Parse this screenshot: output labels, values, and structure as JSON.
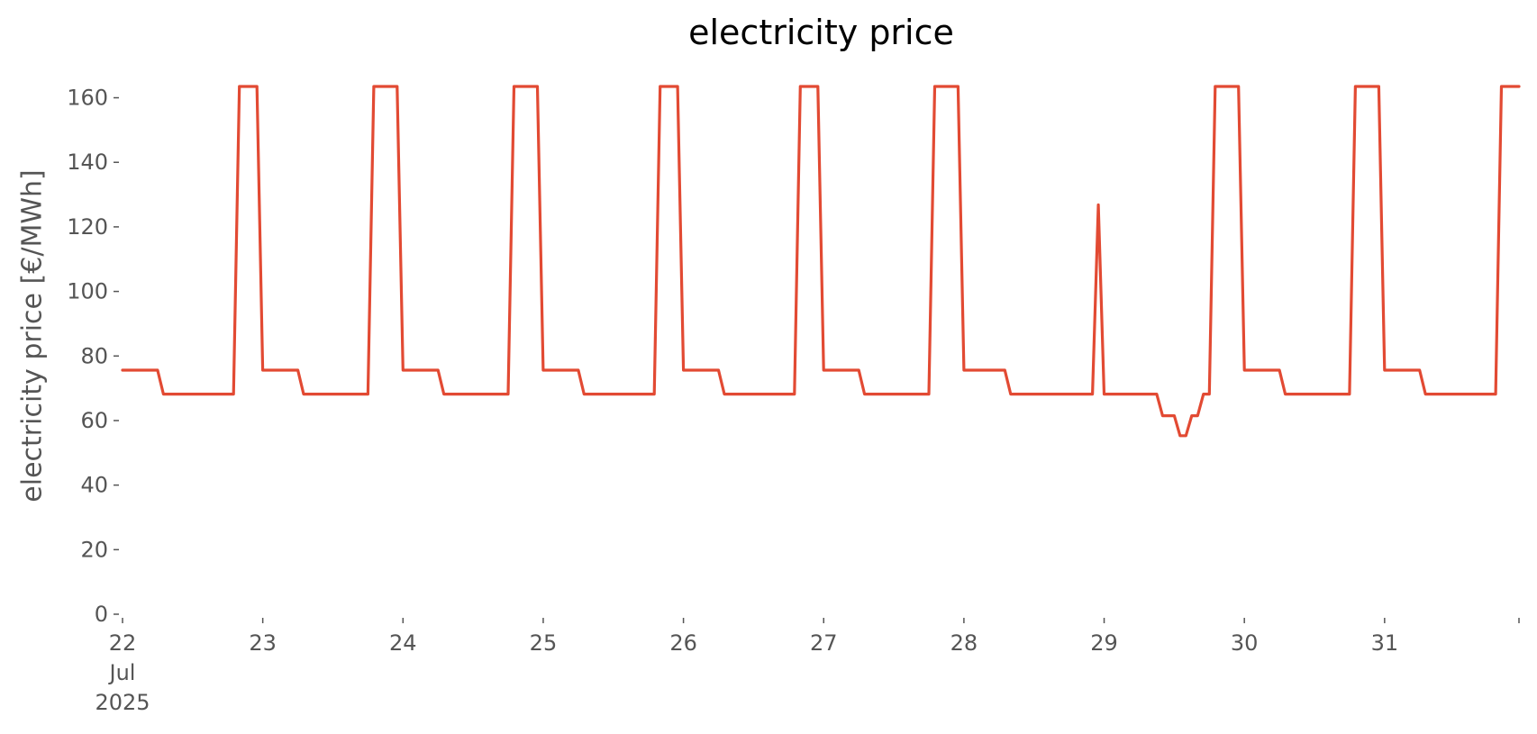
{
  "chart_data": {
    "type": "line",
    "title": "electricity price",
    "xlabel": "",
    "ylabel": "electricity price [€/MWh]",
    "ylim": [
      0,
      163.5
    ],
    "yticks": [
      0,
      20,
      40,
      60,
      80,
      100,
      120,
      140,
      160
    ],
    "xlim": [
      "2025-07-22 00:00",
      "2025-07-31 23:00"
    ],
    "xticks": [
      {
        "value": "2025-07-22",
        "lines": [
          "22",
          "Jul",
          "2025"
        ]
      },
      {
        "value": "2025-07-23",
        "lines": [
          "23"
        ]
      },
      {
        "value": "2025-07-24",
        "lines": [
          "24"
        ]
      },
      {
        "value": "2025-07-25",
        "lines": [
          "25"
        ]
      },
      {
        "value": "2025-07-26",
        "lines": [
          "26"
        ]
      },
      {
        "value": "2025-07-27",
        "lines": [
          "27"
        ]
      },
      {
        "value": "2025-07-28",
        "lines": [
          "28"
        ]
      },
      {
        "value": "2025-07-29",
        "lines": [
          "29"
        ]
      },
      {
        "value": "2025-07-30",
        "lines": [
          "30"
        ]
      },
      {
        "value": "2025-07-31",
        "lines": [
          "31"
        ]
      }
    ],
    "grid": false,
    "color": "#E24A33",
    "x": [
      "2025-07-22 00:00",
      "2025-07-22 06:00",
      "2025-07-22 07:00",
      "2025-07-22 19:00",
      "2025-07-22 20:00",
      "2025-07-22 23:00",
      "2025-07-23 00:00",
      "2025-07-23 06:00",
      "2025-07-23 07:00",
      "2025-07-23 18:00",
      "2025-07-23 19:00",
      "2025-07-23 23:00",
      "2025-07-24 00:00",
      "2025-07-24 06:00",
      "2025-07-24 07:00",
      "2025-07-24 18:00",
      "2025-07-24 19:00",
      "2025-07-24 23:00",
      "2025-07-25 00:00",
      "2025-07-25 06:00",
      "2025-07-25 07:00",
      "2025-07-25 19:00",
      "2025-07-25 20:00",
      "2025-07-25 23:00",
      "2025-07-26 00:00",
      "2025-07-26 06:00",
      "2025-07-26 07:00",
      "2025-07-26 19:00",
      "2025-07-26 20:00",
      "2025-07-26 23:00",
      "2025-07-27 00:00",
      "2025-07-27 06:00",
      "2025-07-27 07:00",
      "2025-07-27 18:00",
      "2025-07-27 19:00",
      "2025-07-27 23:00",
      "2025-07-28 00:00",
      "2025-07-28 07:00",
      "2025-07-28 08:00",
      "2025-07-28 22:00",
      "2025-07-28 23:00",
      "2025-07-29 00:00",
      "2025-07-29 09:00",
      "2025-07-29 10:00",
      "2025-07-29 12:00",
      "2025-07-29 13:00",
      "2025-07-29 14:00",
      "2025-07-29 15:00",
      "2025-07-29 16:00",
      "2025-07-29 17:00",
      "2025-07-29 18:00",
      "2025-07-29 19:00",
      "2025-07-29 23:00",
      "2025-07-30 00:00",
      "2025-07-30 06:00",
      "2025-07-30 07:00",
      "2025-07-30 18:00",
      "2025-07-30 19:00",
      "2025-07-30 23:00",
      "2025-07-31 00:00",
      "2025-07-31 06:00",
      "2025-07-31 07:00",
      "2025-07-31 19:00",
      "2025-07-31 20:00",
      "2025-07-31 23:00"
    ],
    "series": [
      {
        "values": [
          75.6,
          75.6,
          68.2,
          68.2,
          163.5,
          163.5,
          75.6,
          75.6,
          68.2,
          68.2,
          163.5,
          163.5,
          75.6,
          75.6,
          68.2,
          68.2,
          163.5,
          163.5,
          75.6,
          75.6,
          68.2,
          68.2,
          163.5,
          163.5,
          75.6,
          75.6,
          68.2,
          68.2,
          163.5,
          163.5,
          75.6,
          75.6,
          68.2,
          68.2,
          163.5,
          163.5,
          75.6,
          75.6,
          68.2,
          68.2,
          126.8,
          68.2,
          68.2,
          61.5,
          61.5,
          55.3,
          55.3,
          61.5,
          61.5,
          68.2,
          68.2,
          163.5,
          163.5,
          75.6,
          75.6,
          68.2,
          68.2,
          163.5,
          163.5,
          75.6,
          75.6,
          68.2,
          68.2,
          163.5,
          163.5
        ]
      }
    ]
  }
}
